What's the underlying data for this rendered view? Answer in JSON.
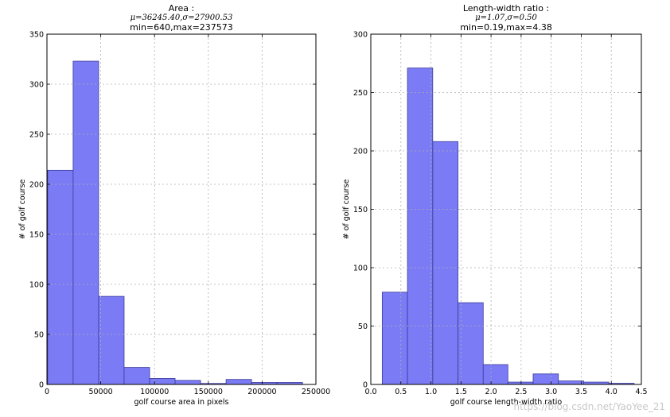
{
  "chart_data": [
    {
      "type": "bar",
      "title_lines": [
        "Area :",
        "μ=36245.40,σ=27900.53",
        "min=640,max=237573"
      ],
      "xlabel": "golf course area in pixels",
      "ylabel": "# of golf course",
      "xlim": [
        0,
        250000
      ],
      "ylim": [
        0,
        350
      ],
      "xticks": [
        0,
        50000,
        100000,
        150000,
        200000,
        250000
      ],
      "xtick_labels": [
        "0",
        "50000",
        "100000",
        "150000",
        "200000",
        "250000"
      ],
      "yticks": [
        0,
        50,
        100,
        150,
        200,
        250,
        300,
        350
      ],
      "ytick_labels": [
        "0",
        "50",
        "100",
        "150",
        "200",
        "250",
        "300",
        "350"
      ],
      "bin_edges": [
        640,
        24333,
        48027,
        71720,
        95413,
        119107,
        142800,
        166493,
        190187,
        213880,
        237573
      ],
      "values": [
        214,
        323,
        88,
        17,
        6,
        4,
        1,
        5,
        2,
        2
      ],
      "grid": true
    },
    {
      "type": "bar",
      "title_lines": [
        "Length-width ratio :",
        "μ=1.07,σ=0.50",
        "min=0.19,max=4.38"
      ],
      "xlabel": "golf course length-width ratio",
      "ylabel": "# of golf course",
      "xlim": [
        0,
        4.5
      ],
      "ylim": [
        0,
        300
      ],
      "xticks": [
        0,
        0.5,
        1.0,
        1.5,
        2.0,
        2.5,
        3.0,
        3.5,
        4.0,
        4.5
      ],
      "xtick_labels": [
        "0.0",
        "0.5",
        "1.0",
        "1.5",
        "2.0",
        "2.5",
        "3.0",
        "3.5",
        "4.0",
        "4.5"
      ],
      "yticks": [
        0,
        50,
        100,
        150,
        200,
        250,
        300
      ],
      "ytick_labels": [
        "0",
        "50",
        "100",
        "150",
        "200",
        "250",
        "300"
      ],
      "bin_edges": [
        0.19,
        0.61,
        1.03,
        1.45,
        1.87,
        2.28,
        2.7,
        3.12,
        3.54,
        3.96,
        4.38
      ],
      "values": [
        79,
        271,
        208,
        70,
        17,
        2,
        9,
        3,
        2,
        1
      ],
      "grid": true
    }
  ],
  "watermark": "https://blog.csdn.net/YaoYee_21"
}
